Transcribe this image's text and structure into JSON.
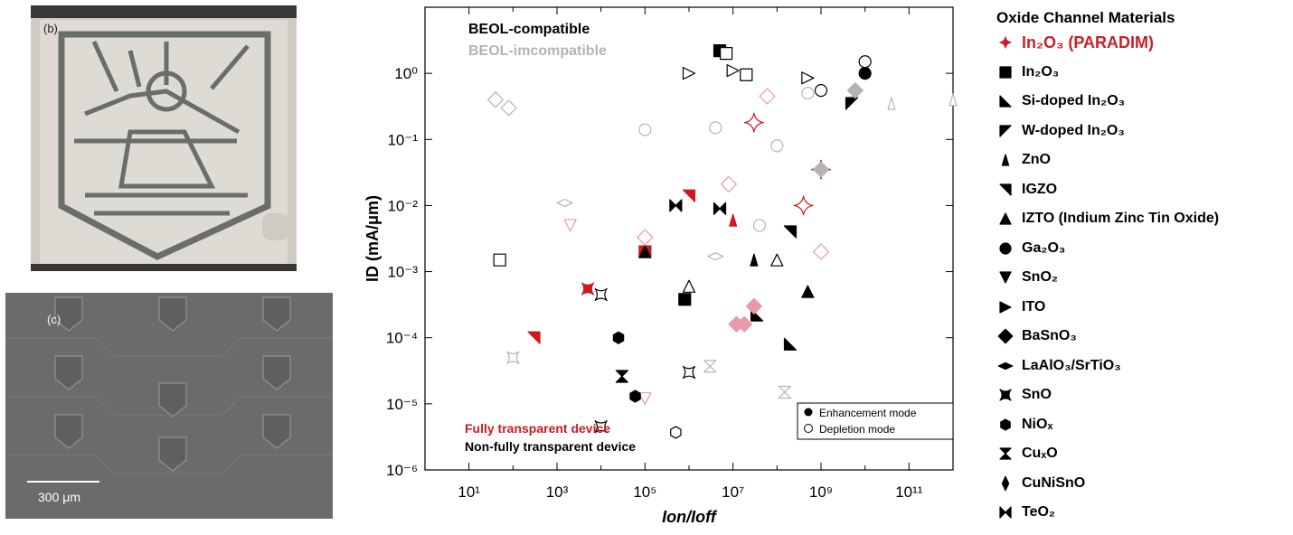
{
  "panels": {
    "b": {
      "letter": "(b)"
    },
    "c": {
      "letter": "(c)",
      "scale_label": "300 μm"
    }
  },
  "colors": {
    "transparent": "#d0181f",
    "non_transparent": "#000000",
    "incompatible_gray": "#b4b4b4",
    "paradim_red": "#c8202a"
  },
  "legend": {
    "title": "Oxide Channel Materials",
    "items": [
      {
        "marker": "star4",
        "label": "In₂O₃ (PARADIM)",
        "highlight": true
      },
      {
        "marker": "square",
        "label": "In₂O₃"
      },
      {
        "marker": "tri-br",
        "label": "Si-doped In₂O₃"
      },
      {
        "marker": "tri-tl",
        "label": "W-doped In₂O₃"
      },
      {
        "marker": "thin-tri",
        "label": "ZnO"
      },
      {
        "marker": "tri-tr",
        "label": "IGZO"
      },
      {
        "marker": "tri-up",
        "label": "IZTO (Indium Zinc Tin Oxide)"
      },
      {
        "marker": "circle",
        "label": "Ga₂O₃"
      },
      {
        "marker": "tri-down",
        "label": "SnO₂"
      },
      {
        "marker": "tri-right",
        "label": "ITO"
      },
      {
        "marker": "diamond",
        "label": "BaSnO₃"
      },
      {
        "marker": "flat-diamond",
        "label": "LaAlO₃/SrTiO₃"
      },
      {
        "marker": "concave",
        "label": "SnO"
      },
      {
        "marker": "hexagon",
        "label": "NiOₓ"
      },
      {
        "marker": "hourglass",
        "label": "CuₓO"
      },
      {
        "marker": "thin-diamond",
        "label": "CuNiSnO"
      },
      {
        "marker": "bowtie",
        "label": "TeO₂"
      }
    ]
  },
  "chart_data": {
    "type": "scatter",
    "xlabel": "Ion/Ioff",
    "ylabel": "ID (mA/μm)",
    "xscale": "log",
    "yscale": "log",
    "xlim": [
      1,
      1000000000000
    ],
    "ylim": [
      1e-06,
      10
    ],
    "x_ticks": [
      "10¹",
      "10³",
      "10⁵",
      "10⁷",
      "10⁹",
      "10¹¹"
    ],
    "y_ticks": [
      "10⁻⁶",
      "10⁻⁵",
      "10⁻⁴",
      "10⁻³",
      "10⁻²",
      "10⁻¹",
      "10⁰"
    ],
    "annotations": {
      "beol_compatible": "BEOL-compatible",
      "beol_incompatible": "BEOL-imcompatible",
      "fully_transparent": "Fully transparent device",
      "non_fully_transparent": "Non-fully transparent device"
    },
    "mode_legend": [
      {
        "label": "Enhancement mode",
        "filled": true
      },
      {
        "label": "Depletion mode",
        "filled": false
      }
    ],
    "points": [
      {
        "m": "star4",
        "x": 30000000,
        "y": 0.18,
        "c": "red",
        "f": false,
        "s": 1.6
      },
      {
        "m": "star4",
        "x": 400000000,
        "y": 0.01,
        "c": "red",
        "f": false,
        "s": 1.6
      },
      {
        "m": "star4",
        "x": 1000000000,
        "y": 0.035,
        "c": "red",
        "f": false,
        "s": 1.6
      },
      {
        "m": "square",
        "x": 5000000,
        "y": 2.2,
        "c": "black",
        "f": true
      },
      {
        "m": "square",
        "x": 7000000,
        "y": 2.0,
        "c": "black",
        "f": false
      },
      {
        "m": "square",
        "x": 20000000,
        "y": 0.95,
        "c": "black",
        "f": false
      },
      {
        "m": "square",
        "x": 50,
        "y": 0.0015,
        "c": "black",
        "f": false
      },
      {
        "m": "square",
        "x": 800000,
        "y": 0.00038,
        "c": "black",
        "f": true
      },
      {
        "m": "square",
        "x": 100000,
        "y": 0.002,
        "c": "red",
        "f": true
      },
      {
        "m": "tri-br",
        "x": 200000000,
        "y": 8e-05,
        "c": "black",
        "f": true
      },
      {
        "m": "tri-br",
        "x": 35000000,
        "y": 0.00022,
        "c": "black",
        "f": true
      },
      {
        "m": "tri-tl",
        "x": 5000000000,
        "y": 0.35,
        "c": "black",
        "f": true
      },
      {
        "m": "thin-tri",
        "x": 10000000,
        "y": 0.006,
        "c": "red",
        "f": true
      },
      {
        "m": "thin-tri",
        "x": 30000000,
        "y": 0.0015,
        "c": "black",
        "f": true
      },
      {
        "m": "thin-tri",
        "x": 40000000000,
        "y": 0.35,
        "c": "gray",
        "f": false
      },
      {
        "m": "thin-tri",
        "x": 1000000000000,
        "y": 0.4,
        "c": "gray",
        "f": false
      },
      {
        "m": "tri-tr",
        "x": 300,
        "y": 0.0001,
        "c": "red",
        "f": true
      },
      {
        "m": "tri-tr",
        "x": 1000000,
        "y": 0.014,
        "c": "red",
        "f": true
      },
      {
        "m": "tri-tr",
        "x": 200000000,
        "y": 0.004,
        "c": "black",
        "f": true
      },
      {
        "m": "tri-up",
        "x": 500000000,
        "y": 0.0005,
        "c": "black",
        "f": true
      },
      {
        "m": "tri-up",
        "x": 100000000,
        "y": 0.0015,
        "c": "black",
        "f": false
      },
      {
        "m": "tri-up",
        "x": 1000000,
        "y": 0.0006,
        "c": "black",
        "f": false
      },
      {
        "m": "tri-up",
        "x": 100000,
        "y": 0.002,
        "c": "black",
        "f": true
      },
      {
        "m": "circle",
        "x": 10000000000,
        "y": 1.0,
        "c": "black",
        "f": true
      },
      {
        "m": "circle",
        "x": 10000000000,
        "y": 1.5,
        "c": "black",
        "f": false
      },
      {
        "m": "circle",
        "x": 1000000000,
        "y": 0.55,
        "c": "black",
        "f": false
      },
      {
        "m": "circle",
        "x": 100000000,
        "y": 0.08,
        "c": "gray",
        "f": false
      },
      {
        "m": "circle",
        "x": 100000,
        "y": 0.14,
        "c": "gray",
        "f": false
      },
      {
        "m": "circle",
        "x": 4000000,
        "y": 0.15,
        "c": "gray",
        "f": false
      },
      {
        "m": "circle",
        "x": 500000000,
        "y": 0.5,
        "c": "gray",
        "f": false
      },
      {
        "m": "circle",
        "x": 40000000,
        "y": 0.005,
        "c": "gray",
        "f": false
      },
      {
        "m": "tri-down",
        "x": 2000,
        "y": 0.005,
        "c": "pink",
        "f": false
      },
      {
        "m": "tri-down",
        "x": 100000,
        "y": 1.2e-05,
        "c": "pink",
        "f": false
      },
      {
        "m": "tri-right",
        "x": 1000000,
        "y": 1.0,
        "c": "black",
        "f": false
      },
      {
        "m": "tri-right",
        "x": 10000000,
        "y": 1.1,
        "c": "black",
        "f": false
      },
      {
        "m": "tri-right",
        "x": 500000000,
        "y": 0.85,
        "c": "black",
        "f": false
      },
      {
        "m": "diamond",
        "x": 40,
        "y": 0.4,
        "c": "gray",
        "f": false
      },
      {
        "m": "diamond",
        "x": 80,
        "y": 0.3,
        "c": "gray",
        "f": false
      },
      {
        "m": "diamond",
        "x": 100000,
        "y": 0.0033,
        "c": "pink",
        "f": false
      },
      {
        "m": "diamond",
        "x": 8000000,
        "y": 0.021,
        "c": "pink",
        "f": false
      },
      {
        "m": "diamond",
        "x": 60000000,
        "y": 0.45,
        "c": "pink",
        "f": false
      },
      {
        "m": "diamond",
        "x": 1000000000,
        "y": 0.002,
        "c": "pink",
        "f": false
      },
      {
        "m": "diamond",
        "x": 1000000000,
        "y": 0.035,
        "c": "gray",
        "f": true
      },
      {
        "m": "diamond",
        "x": 6000000000,
        "y": 0.55,
        "c": "gray",
        "f": true
      },
      {
        "m": "diamond",
        "x": 12000000,
        "y": 0.00016,
        "c": "pink",
        "f": true
      },
      {
        "m": "diamond",
        "x": 18000000,
        "y": 0.00016,
        "c": "pink",
        "f": true
      },
      {
        "m": "diamond",
        "x": 30000000,
        "y": 0.0003,
        "c": "pink",
        "f": true
      },
      {
        "m": "flat-diamond",
        "x": 1500,
        "y": 0.011,
        "c": "gray",
        "f": false
      },
      {
        "m": "flat-diamond",
        "x": 4000000,
        "y": 0.0017,
        "c": "gray",
        "f": false
      },
      {
        "m": "concave",
        "x": 5000,
        "y": 0.00055,
        "c": "red",
        "f": true
      },
      {
        "m": "concave",
        "x": 10000,
        "y": 0.00045,
        "c": "black",
        "f": false
      },
      {
        "m": "concave",
        "x": 100,
        "y": 5e-05,
        "c": "gray",
        "f": false
      },
      {
        "m": "concave",
        "x": 10000,
        "y": 4.5e-06,
        "c": "black",
        "f": false
      },
      {
        "m": "concave",
        "x": 1000000,
        "y": 3e-05,
        "c": "black",
        "f": false
      },
      {
        "m": "hexagon",
        "x": 25000,
        "y": 0.0001,
        "c": "black",
        "f": true
      },
      {
        "m": "hexagon",
        "x": 60000,
        "y": 1.3e-05,
        "c": "black",
        "f": true
      },
      {
        "m": "hexagon",
        "x": 500000,
        "y": 3.7e-06,
        "c": "black",
        "f": false
      },
      {
        "m": "hourglass",
        "x": 30000,
        "y": 2.6e-05,
        "c": "black",
        "f": true
      },
      {
        "m": "hourglass",
        "x": 3000000,
        "y": 3.7e-05,
        "c": "gray",
        "f": false
      },
      {
        "m": "hourglass",
        "x": 150000000,
        "y": 1.5e-05,
        "c": "gray",
        "f": false
      },
      {
        "m": "bowtie",
        "x": 500000,
        "y": 0.01,
        "c": "black",
        "f": true
      },
      {
        "m": "bowtie",
        "x": 5000000,
        "y": 0.009,
        "c": "black",
        "f": true
      }
    ]
  }
}
